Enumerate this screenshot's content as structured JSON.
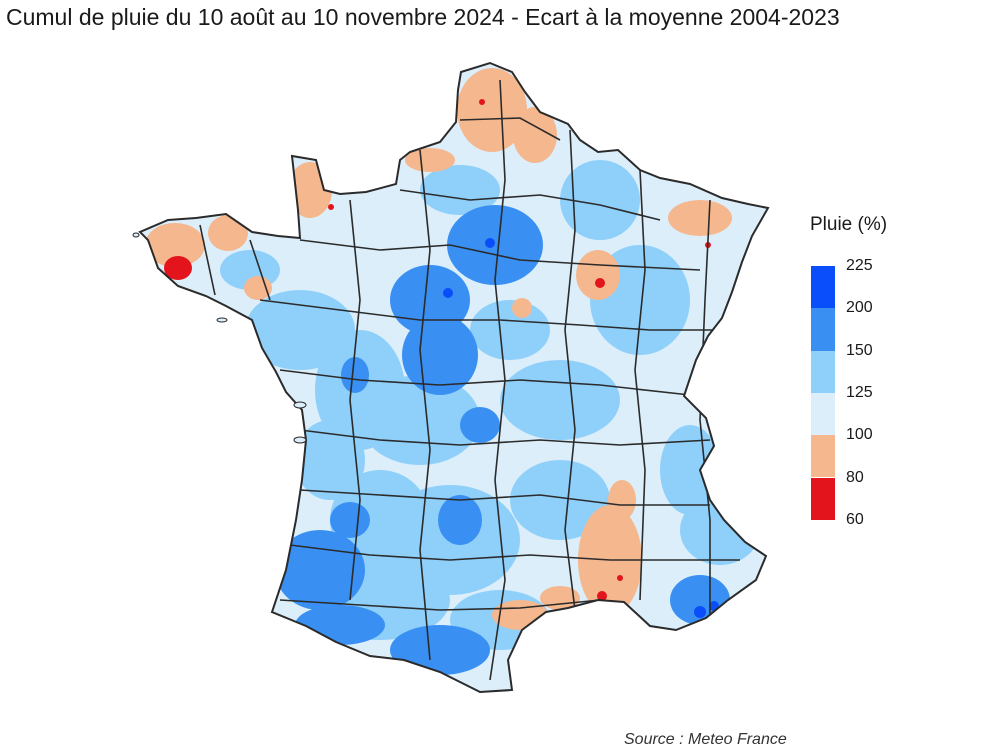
{
  "title": "Cumul de pluie du 10 août au 10 novembre 2024 - Ecart à la moyenne 2004-2023",
  "source": "Source : Meteo France",
  "legend": {
    "title": "Pluie (%)",
    "ticks": [
      "225",
      "200",
      "150",
      "125",
      "100",
      "80",
      "60"
    ],
    "bins": [
      {
        "range": "200-225",
        "color": "#0a4dfa"
      },
      {
        "range": "150-200",
        "color": "#3990f2"
      },
      {
        "range": "125-150",
        "color": "#8fd0fb"
      },
      {
        "range": "100-125",
        "color": "#dbeefa"
      },
      {
        "range": "80-100",
        "color": "#f5b78e"
      },
      {
        "range": "60-80",
        "color": "#e3141c"
      }
    ]
  },
  "map": {
    "region": "France métropolitaine",
    "colors": {
      "very_wet": "#0a4dfa",
      "wet": "#3990f2",
      "moderate": "#8fd0fb",
      "slight": "#dbeefa",
      "dry": "#f5b78e",
      "very_dry": "#e3141c",
      "border": "#2b2b2b"
    }
  }
}
